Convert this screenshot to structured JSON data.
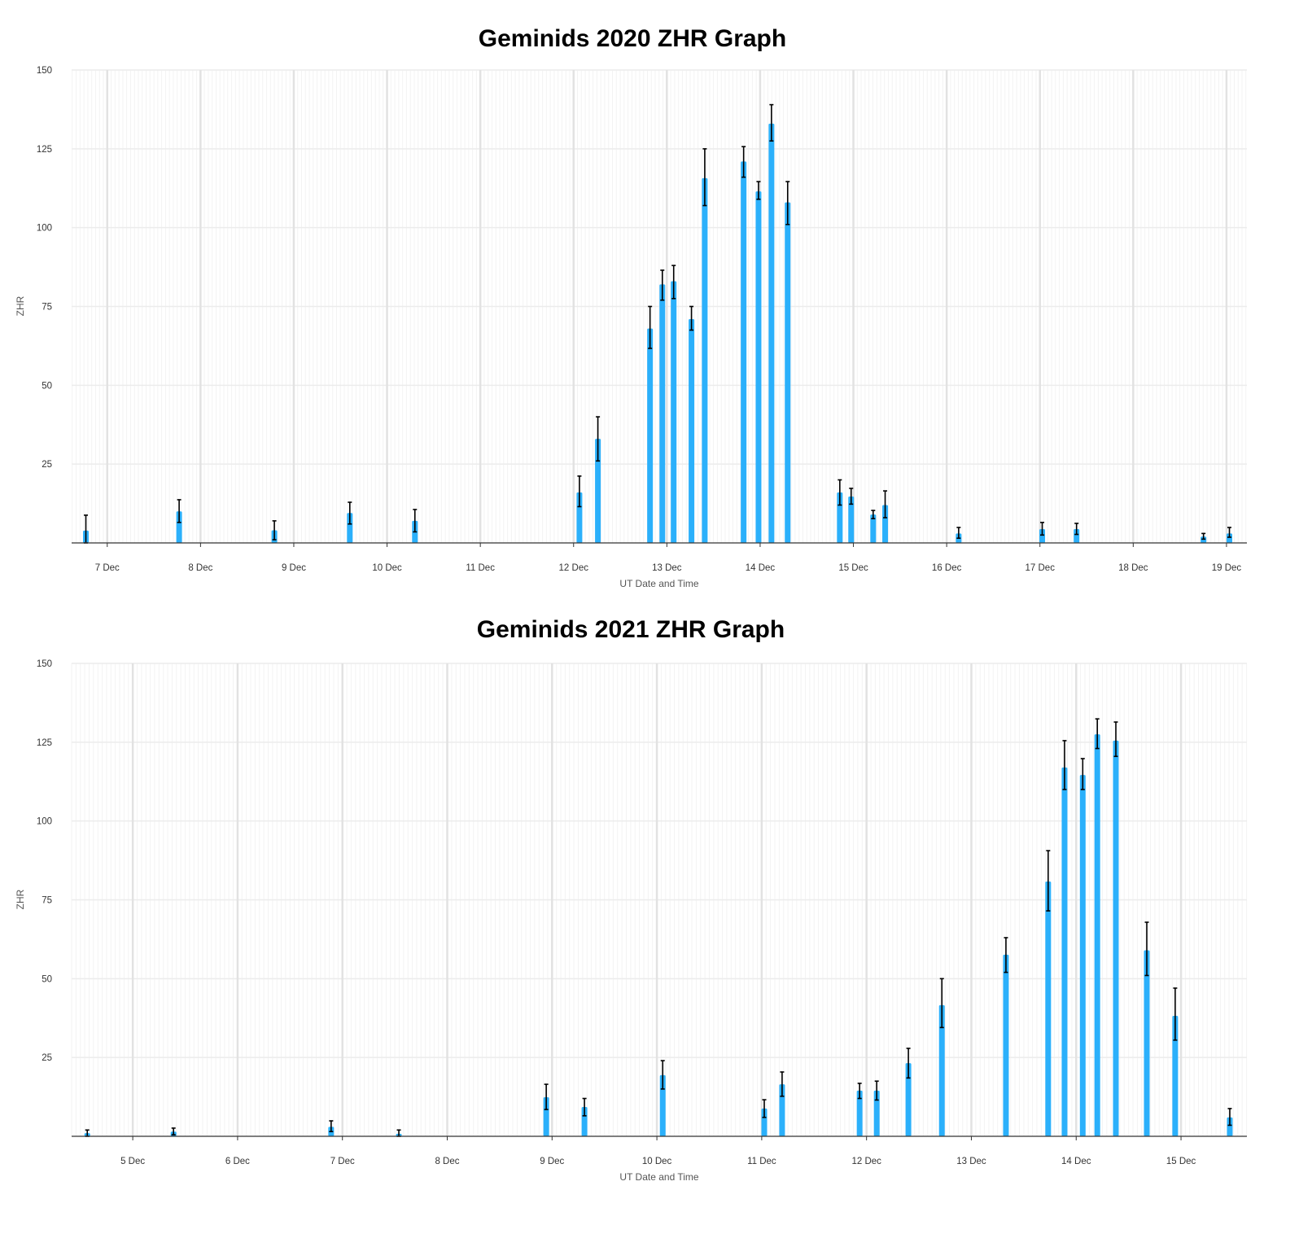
{
  "chart_data": [
    {
      "type": "bar",
      "title": "Geminids 2020 ZHR Graph",
      "xlabel": "UT Date and Time",
      "ylabel": "ZHR",
      "xlim": [
        "2020-12-06 14:50",
        "2020-12-19 05:15"
      ],
      "ylim": [
        0,
        150
      ],
      "yticks": [
        25,
        50,
        75,
        100,
        125,
        150
      ],
      "xticks": [
        {
          "date": "2020-12-07",
          "label": "7 Dec"
        },
        {
          "date": "2020-12-08",
          "label": "8 Dec"
        },
        {
          "date": "2020-12-09",
          "label": "9 Dec"
        },
        {
          "date": "2020-12-10",
          "label": "10 Dec"
        },
        {
          "date": "2020-12-11",
          "label": "11 Dec"
        },
        {
          "date": "2020-12-12",
          "label": "12 Dec"
        },
        {
          "date": "2020-12-13",
          "label": "13 Dec"
        },
        {
          "date": "2020-12-14",
          "label": "14 Dec"
        },
        {
          "date": "2020-12-15",
          "label": "15 Dec"
        },
        {
          "date": "2020-12-16",
          "label": "16 Dec"
        },
        {
          "date": "2020-12-17",
          "label": "17 Dec"
        },
        {
          "date": "2020-12-18",
          "label": "18 Dec"
        },
        {
          "date": "2020-12-19",
          "label": "19 Dec"
        }
      ],
      "grid": true,
      "bar_color": "#2bb0fb",
      "error_bar_color": "#000000",
      "points": [
        {
          "x": "2020-12-06 18:30",
          "y": 3.9,
          "lo": 0,
          "hi": 8.8
        },
        {
          "x": "2020-12-07 18:30",
          "y": 10,
          "lo": 6.5,
          "hi": 13.7
        },
        {
          "x": "2020-12-08 19:00",
          "y": 4,
          "lo": 1,
          "hi": 7
        },
        {
          "x": "2020-12-09 14:25",
          "y": 9.5,
          "lo": 6,
          "hi": 12.9
        },
        {
          "x": "2020-12-10 07:10",
          "y": 7,
          "lo": 3.5,
          "hi": 10.6
        },
        {
          "x": "2020-12-12 01:30",
          "y": 16,
          "lo": 11.5,
          "hi": 21.2
        },
        {
          "x": "2020-12-12 06:15",
          "y": 33,
          "lo": 26,
          "hi": 40
        },
        {
          "x": "2020-12-12 19:40",
          "y": 68,
          "lo": 61.7,
          "hi": 75
        },
        {
          "x": "2020-12-12 22:50",
          "y": 82,
          "lo": 77,
          "hi": 86.5
        },
        {
          "x": "2020-12-13 01:45",
          "y": 83,
          "lo": 77.5,
          "hi": 88
        },
        {
          "x": "2020-12-13 06:20",
          "y": 71,
          "lo": 67.5,
          "hi": 75
        },
        {
          "x": "2020-12-13 09:45",
          "y": 115.7,
          "lo": 107,
          "hi": 125
        },
        {
          "x": "2020-12-13 19:45",
          "y": 121,
          "lo": 116,
          "hi": 125.7
        },
        {
          "x": "2020-12-13 23:35",
          "y": 111.5,
          "lo": 109,
          "hi": 114.6
        },
        {
          "x": "2020-12-14 02:55",
          "y": 133,
          "lo": 127.5,
          "hi": 139
        },
        {
          "x": "2020-12-14 07:05",
          "y": 108,
          "lo": 101,
          "hi": 114.6
        },
        {
          "x": "2020-12-14 20:30",
          "y": 16,
          "lo": 12,
          "hi": 20
        },
        {
          "x": "2020-12-14 23:25",
          "y": 14.7,
          "lo": 12.3,
          "hi": 17.3
        },
        {
          "x": "2020-12-15 05:05",
          "y": 9,
          "lo": 7.7,
          "hi": 10.3
        },
        {
          "x": "2020-12-15 08:10",
          "y": 12,
          "lo": 8,
          "hi": 16.5
        },
        {
          "x": "2020-12-16 03:05",
          "y": 3,
          "lo": 1.5,
          "hi": 4.9
        },
        {
          "x": "2020-12-17 00:35",
          "y": 4.4,
          "lo": 2.5,
          "hi": 6.5
        },
        {
          "x": "2020-12-17 09:25",
          "y": 4.4,
          "lo": 2.7,
          "hi": 6.2
        },
        {
          "x": "2020-12-18 18:05",
          "y": 2,
          "lo": 1.2,
          "hi": 3
        },
        {
          "x": "2020-12-19 00:45",
          "y": 3,
          "lo": 1.8,
          "hi": 4.9
        }
      ]
    },
    {
      "type": "bar",
      "title": "Geminids 2021 ZHR Graph",
      "xlabel": "UT Date and Time",
      "ylabel": "ZHR",
      "xlim": [
        "2021-12-04 10:00",
        "2021-12-15 15:05"
      ],
      "ylim": [
        0,
        150
      ],
      "yticks": [
        25,
        50,
        75,
        100,
        125,
        150
      ],
      "xticks": [
        {
          "date": "2021-12-05",
          "label": "5 Dec"
        },
        {
          "date": "2021-12-06",
          "label": "6 Dec"
        },
        {
          "date": "2021-12-07",
          "label": "7 Dec"
        },
        {
          "date": "2021-12-08",
          "label": "8 Dec"
        },
        {
          "date": "2021-12-09",
          "label": "9 Dec"
        },
        {
          "date": "2021-12-10",
          "label": "10 Dec"
        },
        {
          "date": "2021-12-11",
          "label": "11 Dec"
        },
        {
          "date": "2021-12-12",
          "label": "12 Dec"
        },
        {
          "date": "2021-12-13",
          "label": "13 Dec"
        },
        {
          "date": "2021-12-14",
          "label": "14 Dec"
        },
        {
          "date": "2021-12-15",
          "label": "15 Dec"
        }
      ],
      "grid": true,
      "bar_color": "#2bb0fb",
      "error_bar_color": "#000000",
      "points": [
        {
          "x": "2021-12-04 13:35",
          "y": 1,
          "lo": 0,
          "hi": 2
        },
        {
          "x": "2021-12-05 09:20",
          "y": 1.5,
          "lo": 0.5,
          "hi": 2.6
        },
        {
          "x": "2021-12-06 21:25",
          "y": 3,
          "lo": 1.5,
          "hi": 4.9
        },
        {
          "x": "2021-12-07 12:55",
          "y": 0.8,
          "lo": 0,
          "hi": 2
        },
        {
          "x": "2021-12-08 22:40",
          "y": 12.4,
          "lo": 8.5,
          "hi": 16.5
        },
        {
          "x": "2021-12-09 07:25",
          "y": 9.3,
          "lo": 6.5,
          "hi": 12
        },
        {
          "x": "2021-12-10 01:20",
          "y": 19.4,
          "lo": 15,
          "hi": 24
        },
        {
          "x": "2021-12-11 00:35",
          "y": 8.8,
          "lo": 6,
          "hi": 11.6
        },
        {
          "x": "2021-12-11 04:40",
          "y": 16.5,
          "lo": 12.7,
          "hi": 20.4
        },
        {
          "x": "2021-12-11 22:25",
          "y": 14.5,
          "lo": 12,
          "hi": 16.8
        },
        {
          "x": "2021-12-12 02:20",
          "y": 14.5,
          "lo": 11.5,
          "hi": 17.5
        },
        {
          "x": "2021-12-12 09:35",
          "y": 23.2,
          "lo": 18.5,
          "hi": 27.9
        },
        {
          "x": "2021-12-12 17:15",
          "y": 41.6,
          "lo": 34.5,
          "hi": 50
        },
        {
          "x": "2021-12-13 07:55",
          "y": 57.6,
          "lo": 52,
          "hi": 63
        },
        {
          "x": "2021-12-13 17:35",
          "y": 80.8,
          "lo": 71.5,
          "hi": 90.6
        },
        {
          "x": "2021-12-13 21:20",
          "y": 117,
          "lo": 110,
          "hi": 125.5
        },
        {
          "x": "2021-12-14 01:30",
          "y": 114.6,
          "lo": 110,
          "hi": 119.8
        },
        {
          "x": "2021-12-14 04:50",
          "y": 127.5,
          "lo": 123,
          "hi": 132.4
        },
        {
          "x": "2021-12-14 09:05",
          "y": 125.5,
          "lo": 120.5,
          "hi": 131.4
        },
        {
          "x": "2021-12-14 16:10",
          "y": 59,
          "lo": 51,
          "hi": 67.9
        },
        {
          "x": "2021-12-14 22:40",
          "y": 38.2,
          "lo": 30.5,
          "hi": 47
        },
        {
          "x": "2021-12-15 11:10",
          "y": 6,
          "lo": 3.5,
          "hi": 8.8
        }
      ]
    }
  ]
}
